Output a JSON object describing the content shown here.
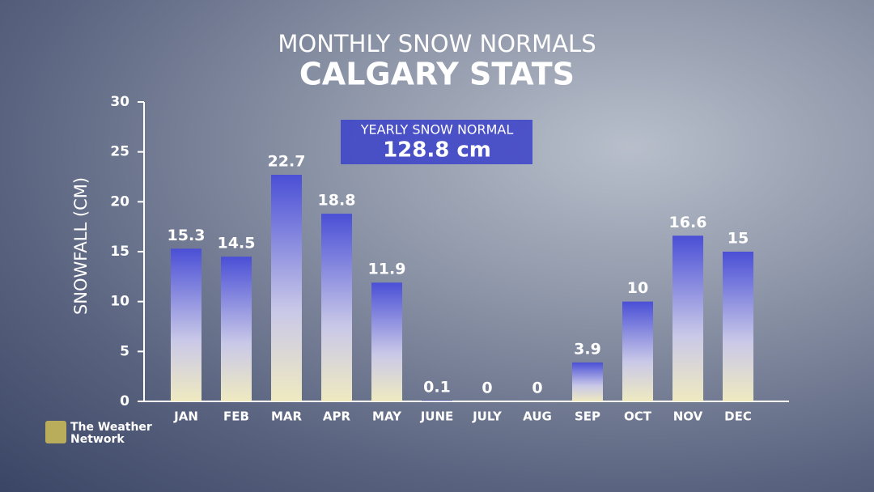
{
  "chart_data": {
    "type": "bar",
    "title": "MONTHLY SNOW NORMALS",
    "subtitle": "CALGARY STATS",
    "y_label": "SNOWFALL (CM)",
    "annotation": {
      "label": "YEARLY SNOW NORMAL",
      "value": "128.8 cm"
    },
    "categories": [
      "JAN",
      "FEB",
      "MAR",
      "APR",
      "MAY",
      "JUNE",
      "JULY",
      "AUG",
      "SEP",
      "OCT",
      "NOV",
      "DEC"
    ],
    "values": [
      15.3,
      14.5,
      22.7,
      18.8,
      11.9,
      0.1,
      0,
      0,
      3.9,
      10,
      16.6,
      15
    ],
    "color": "#4a4fd6",
    "ylim": [
      0,
      30
    ],
    "yticks": [
      0,
      5,
      10,
      15,
      20,
      25,
      30
    ],
    "grid": false
  },
  "logo": [
    "The Weather",
    "Network"
  ]
}
